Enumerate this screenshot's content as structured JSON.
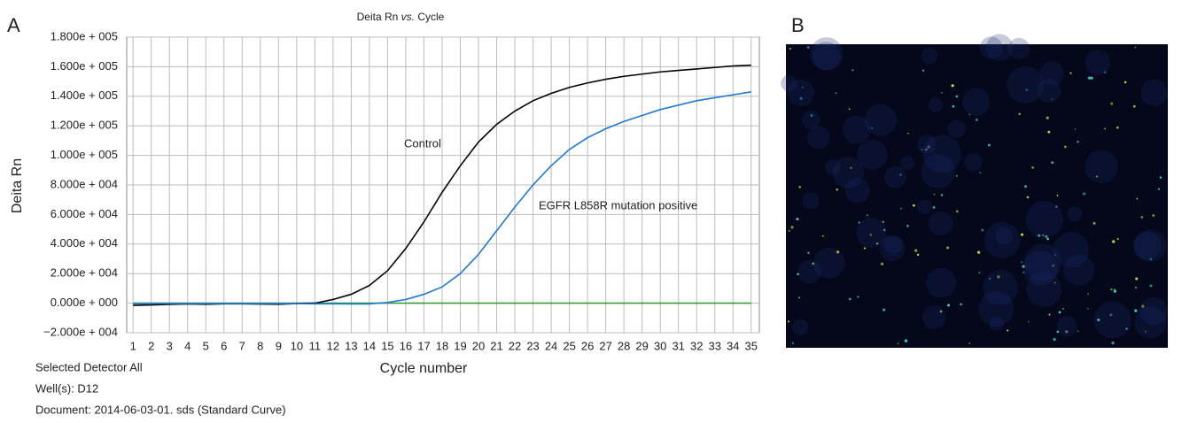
{
  "panel_labels": [
    "A",
    "B"
  ],
  "chart_data": {
    "type": "line",
    "title_parts": [
      "Deita Rn ",
      "vs.",
      " Cycle"
    ],
    "y_label": "Deita Rn",
    "x_label": "Cycle number",
    "x": [
      1,
      2,
      3,
      4,
      5,
      6,
      7,
      8,
      9,
      10,
      11,
      12,
      13,
      14,
      15,
      16,
      17,
      18,
      19,
      20,
      21,
      22,
      23,
      24,
      25,
      26,
      27,
      28,
      29,
      30,
      31,
      32,
      33,
      34,
      35
    ],
    "xlim": [
      0.65,
      35.45
    ],
    "xticks": [
      1,
      2,
      3,
      4,
      5,
      6,
      7,
      8,
      9,
      10,
      11,
      12,
      13,
      14,
      15,
      16,
      17,
      18,
      19,
      20,
      21,
      22,
      23,
      24,
      25,
      26,
      27,
      28,
      29,
      30,
      31,
      32,
      33,
      34,
      35
    ],
    "ylim": [
      -20000,
      180000
    ],
    "yticks": [
      {
        "value": -20000,
        "label": "−2.000e + 004"
      },
      {
        "value": 0,
        "label": "0.000e + 000"
      },
      {
        "value": 20000,
        "label": "2.000e + 004"
      },
      {
        "value": 40000,
        "label": "4.000e + 004"
      },
      {
        "value": 60000,
        "label": "6.000e + 004"
      },
      {
        "value": 80000,
        "label": "8.000e + 004"
      },
      {
        "value": 100000,
        "label": "1.000e + 005"
      },
      {
        "value": 120000,
        "label": "1.200e + 005"
      },
      {
        "value": 140000,
        "label": "1.400e + 005"
      },
      {
        "value": 160000,
        "label": "1.600e + 005"
      },
      {
        "value": 180000,
        "label": "1.800e + 005"
      }
    ],
    "grid": true,
    "series": [
      {
        "color": "#3a9a3a",
        "values": [
          0,
          0,
          0,
          0,
          0,
          0,
          0,
          0,
          0,
          0,
          0,
          0,
          0,
          0,
          0,
          0,
          0,
          0,
          0,
          0,
          0,
          0,
          0,
          0,
          0,
          0,
          0,
          0,
          0,
          0,
          0,
          0,
          0,
          0,
          0
        ]
      },
      {
        "name": "Control",
        "color": "#000000",
        "values": [
          -1500,
          -1200,
          -800,
          -500,
          -700,
          -400,
          -400,
          -600,
          -700,
          -300,
          0,
          2500,
          6000,
          12000,
          22000,
          37000,
          55000,
          75000,
          93000,
          109000,
          121000,
          130000,
          137000,
          142000,
          146000,
          149000,
          151500,
          153500,
          155000,
          156500,
          157500,
          158500,
          159500,
          160500,
          161000
        ]
      },
      {
        "name": "EGFR L858R mutation positive",
        "color": "#1f78d0",
        "values": [
          -300,
          -300,
          -300,
          -300,
          -300,
          -300,
          -300,
          -300,
          -300,
          -300,
          -400,
          -400,
          -500,
          -500,
          500,
          2500,
          6000,
          11000,
          20000,
          33000,
          49000,
          65000,
          80000,
          93000,
          104000,
          112000,
          118000,
          123000,
          127000,
          131000,
          134000,
          137000,
          139000,
          141000,
          143000
        ]
      }
    ],
    "footer": [
      "Selected Detector All",
      "Well(s): D12",
      "Document: 2014-06-03-01. sds (Standard Curve)"
    ]
  }
}
